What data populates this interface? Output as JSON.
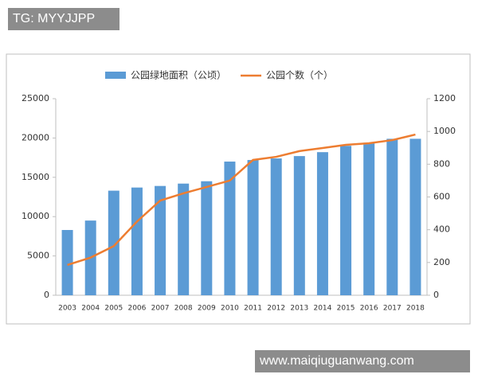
{
  "watermarks": {
    "top": "TG: MYYJJPP",
    "bottom": "www.maiqiuguanwang.com"
  },
  "chart_data": {
    "type": "bar",
    "categories": [
      "2003",
      "2004",
      "2005",
      "2006",
      "2007",
      "2008",
      "2009",
      "2010",
      "2011",
      "2012",
      "2013",
      "2014",
      "2015",
      "2016",
      "2017",
      "2018"
    ],
    "series": [
      {
        "name": "公园绿地面积（公顷）",
        "type": "bar",
        "color": "#5b9bd5",
        "axis": "y",
        "values": [
          8300,
          9500,
          13300,
          13700,
          13900,
          14200,
          14500,
          17000,
          17200,
          17400,
          17700,
          18200,
          19000,
          19400,
          19900,
          19900
        ]
      },
      {
        "name": "公园个数（个）",
        "type": "line",
        "color": "#ed7d31",
        "axis": "y2",
        "values": [
          185,
          230,
          300,
          450,
          578,
          622,
          661,
          700,
          826,
          845,
          880,
          899,
          918,
          928,
          947,
          981
        ]
      }
    ],
    "ylim": [
      0,
      25000
    ],
    "yticks": [
      0,
      5000,
      10000,
      15000,
      20000,
      25000
    ],
    "y2lim": [
      0,
      1200
    ],
    "y2ticks": [
      0,
      200,
      400,
      600,
      800,
      1000,
      1200
    ],
    "grid": false
  }
}
